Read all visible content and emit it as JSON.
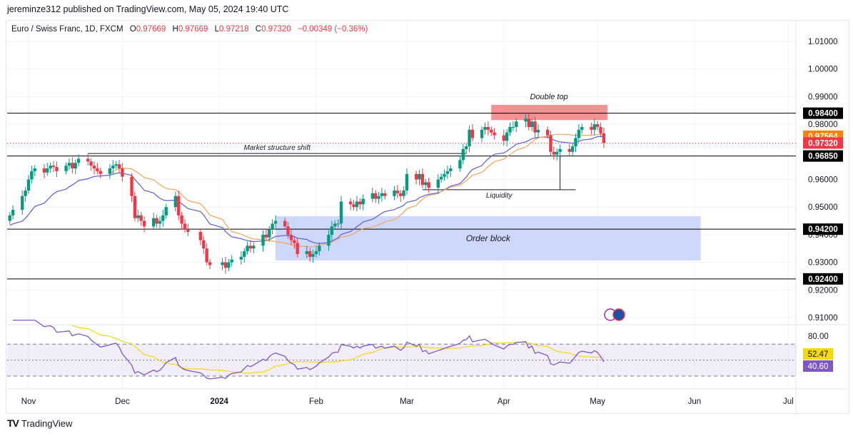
{
  "header": {
    "published": "jereminze312 published on TradingView.com, May 05, 2024 19:40 UTC"
  },
  "legend": {
    "symbol": "Euro / Swiss Franc, 1D, FXCM",
    "open_label": "O",
    "open": "0.97669",
    "high_label": "H",
    "high": "0.97669",
    "low_label": "L",
    "low": "0.97218",
    "close_label": "C",
    "close": "0.97320",
    "change": "−0.00349 (−0.36%)"
  },
  "footer": {
    "logo_text": "TradingView"
  },
  "colors": {
    "up": "#089981",
    "down": "#f23645",
    "ma_fast": "#5b5fd6",
    "ma_slow": "#f7a35c",
    "rsi": "#7e57c2",
    "rsi_ma": "#f5d90a",
    "order_block": "#c5d1fb",
    "double_top": "#f77c80"
  },
  "chart_data": {
    "type": "candlestick",
    "price_axis": {
      "ticks": [
        "1.01000",
        "1.00000",
        "0.99000",
        "0.98000",
        "0.96000",
        "0.95000",
        "0.94000",
        "0.93000",
        "0.92000",
        "0.91000"
      ],
      "range": [
        0.905,
        1.014
      ]
    },
    "time_axis": {
      "ticks": [
        {
          "label": "Nov",
          "date": "2023-11-01"
        },
        {
          "label": "Dec",
          "date": "2023-12-01"
        },
        {
          "label": "2024",
          "date": "2024-01-01"
        },
        {
          "label": "Feb",
          "date": "2024-02-01"
        },
        {
          "label": "Mar",
          "date": "2024-03-01"
        },
        {
          "label": "Apr",
          "date": "2024-04-01"
        },
        {
          "label": "May",
          "date": "2024-05-01"
        },
        {
          "label": "Jun",
          "date": "2024-06-01"
        },
        {
          "label": "Jul",
          "date": "2024-07-01"
        }
      ]
    },
    "dates": [
      "2023-10-26",
      "2023-10-27",
      "2023-10-30",
      "2023-10-31",
      "2023-11-01",
      "2023-11-02",
      "2023-11-03",
      "2023-11-06",
      "2023-11-07",
      "2023-11-08",
      "2023-11-09",
      "2023-11-10",
      "2023-11-13",
      "2023-11-14",
      "2023-11-15",
      "2023-11-16",
      "2023-11-17",
      "2023-11-20",
      "2023-11-21",
      "2023-11-22",
      "2023-11-23",
      "2023-11-24",
      "2023-11-27",
      "2023-11-28",
      "2023-11-29",
      "2023-11-30",
      "2023-12-01",
      "2023-12-04",
      "2023-12-05",
      "2023-12-06",
      "2023-12-07",
      "2023-12-08",
      "2023-12-11",
      "2023-12-12",
      "2023-12-13",
      "2023-12-14",
      "2023-12-15",
      "2023-12-18",
      "2023-12-19",
      "2023-12-20",
      "2023-12-21",
      "2023-12-22",
      "2023-12-26",
      "2023-12-27",
      "2023-12-28",
      "2023-12-29",
      "2024-01-02",
      "2024-01-03",
      "2024-01-04",
      "2024-01-05",
      "2024-01-08",
      "2024-01-09",
      "2024-01-10",
      "2024-01-11",
      "2024-01-12",
      "2024-01-15",
      "2024-01-16",
      "2024-01-17",
      "2024-01-18",
      "2024-01-19",
      "2024-01-22",
      "2024-01-23",
      "2024-01-24",
      "2024-01-25",
      "2024-01-26",
      "2024-01-29",
      "2024-01-30",
      "2024-01-31",
      "2024-02-01",
      "2024-02-02",
      "2024-02-05",
      "2024-02-06",
      "2024-02-07",
      "2024-02-08",
      "2024-02-09",
      "2024-02-12",
      "2024-02-13",
      "2024-02-14",
      "2024-02-15",
      "2024-02-16",
      "2024-02-19",
      "2024-02-20",
      "2024-02-21",
      "2024-02-22",
      "2024-02-23",
      "2024-02-26",
      "2024-02-27",
      "2024-02-28",
      "2024-02-29",
      "2024-03-01",
      "2024-03-04",
      "2024-03-05",
      "2024-03-06",
      "2024-03-07",
      "2024-03-08",
      "2024-03-11",
      "2024-03-12",
      "2024-03-13",
      "2024-03-14",
      "2024-03-15",
      "2024-03-18",
      "2024-03-19",
      "2024-03-20",
      "2024-03-21",
      "2024-03-22",
      "2024-03-25",
      "2024-03-26",
      "2024-03-27",
      "2024-03-28",
      "2024-03-29",
      "2024-04-01",
      "2024-04-02",
      "2024-04-03",
      "2024-04-04",
      "2024-04-05",
      "2024-04-08",
      "2024-04-09",
      "2024-04-10",
      "2024-04-11",
      "2024-04-12",
      "2024-04-15",
      "2024-04-16",
      "2024-04-17",
      "2024-04-18",
      "2024-04-19",
      "2024-04-22",
      "2024-04-23",
      "2024-04-24",
      "2024-04-25",
      "2024-04-26",
      "2024-04-29",
      "2024-04-30",
      "2024-05-01",
      "2024-05-02",
      "2024-05-03"
    ],
    "close": [
      0.947,
      0.949,
      0.954,
      0.956,
      0.96,
      0.963,
      0.964,
      0.9625,
      0.964,
      0.965,
      0.9645,
      0.963,
      0.965,
      0.966,
      0.964,
      0.966,
      0.9675,
      0.9665,
      0.965,
      0.964,
      0.963,
      0.962,
      0.964,
      0.965,
      0.9655,
      0.964,
      0.961,
      0.954,
      0.946,
      0.947,
      0.945,
      0.943,
      0.946,
      0.944,
      0.945,
      0.947,
      0.95,
      0.954,
      0.947,
      0.944,
      0.942,
      0.941,
      0.938,
      0.935,
      0.93,
      0.929,
      0.93,
      0.928,
      0.93,
      0.931,
      0.932,
      0.934,
      0.936,
      0.935,
      0.936,
      0.94,
      0.939,
      0.942,
      0.944,
      0.945,
      0.943,
      0.94,
      0.938,
      0.937,
      0.933,
      0.934,
      0.932,
      0.933,
      0.934,
      0.936,
      0.94,
      0.943,
      0.944,
      0.944,
      0.952,
      0.951,
      0.95,
      0.952,
      0.951,
      0.953,
      0.955,
      0.953,
      0.954,
      0.955,
      0.954,
      0.956,
      0.955,
      0.954,
      0.956,
      0.962,
      0.96,
      0.962,
      0.958,
      0.959,
      0.957,
      0.96,
      0.961,
      0.962,
      0.963,
      0.964,
      0.967,
      0.971,
      0.972,
      0.978,
      0.975,
      0.978,
      0.979,
      0.978,
      0.977,
      0.976,
      0.974,
      0.977,
      0.979,
      0.979,
      0.981,
      0.982,
      0.979,
      0.981,
      0.977,
      0.978,
      0.976,
      0.97,
      0.969,
      0.97,
      0.971,
      0.97,
      0.972,
      0.975,
      0.978,
      0.979,
      0.978,
      0.98,
      0.979,
      0.9767,
      0.9732
    ],
    "levels": [
      {
        "price": 0.984,
        "label": "0.98400"
      },
      {
        "price": 0.9685,
        "label": "0.96850"
      },
      {
        "price": 0.942,
        "label": "0.94200"
      },
      {
        "price": 0.924,
        "label": "0.92400"
      }
    ],
    "price_labels": {
      "ma": "0.97564",
      "ma_price": 0.97564,
      "last": "0.97320",
      "last_price": 0.9732
    },
    "annotations": {
      "double_top": {
        "text": "Double top",
        "top": 0.987,
        "bottom": 0.9815,
        "from": "2024-03-28",
        "to": "2024-05-03"
      },
      "market_structure_shift": {
        "text": "Market structure shift",
        "price": 0.9694,
        "from": "2023-11-20",
        "to": "2024-03-20"
      },
      "liquidity": {
        "text": "Liquidity",
        "price": 0.9563,
        "from": "2024-03-06",
        "to": "2024-04-24"
      },
      "order_block": {
        "text": "Order block",
        "top": 0.9467,
        "bottom": 0.9307,
        "from": "2024-01-19",
        "to": "2024-06-03"
      }
    },
    "rsi": {
      "ticks": [
        "80.00"
      ],
      "upper": 70,
      "lower": 30,
      "value": "40.60",
      "ma_value": "52.47"
    }
  }
}
